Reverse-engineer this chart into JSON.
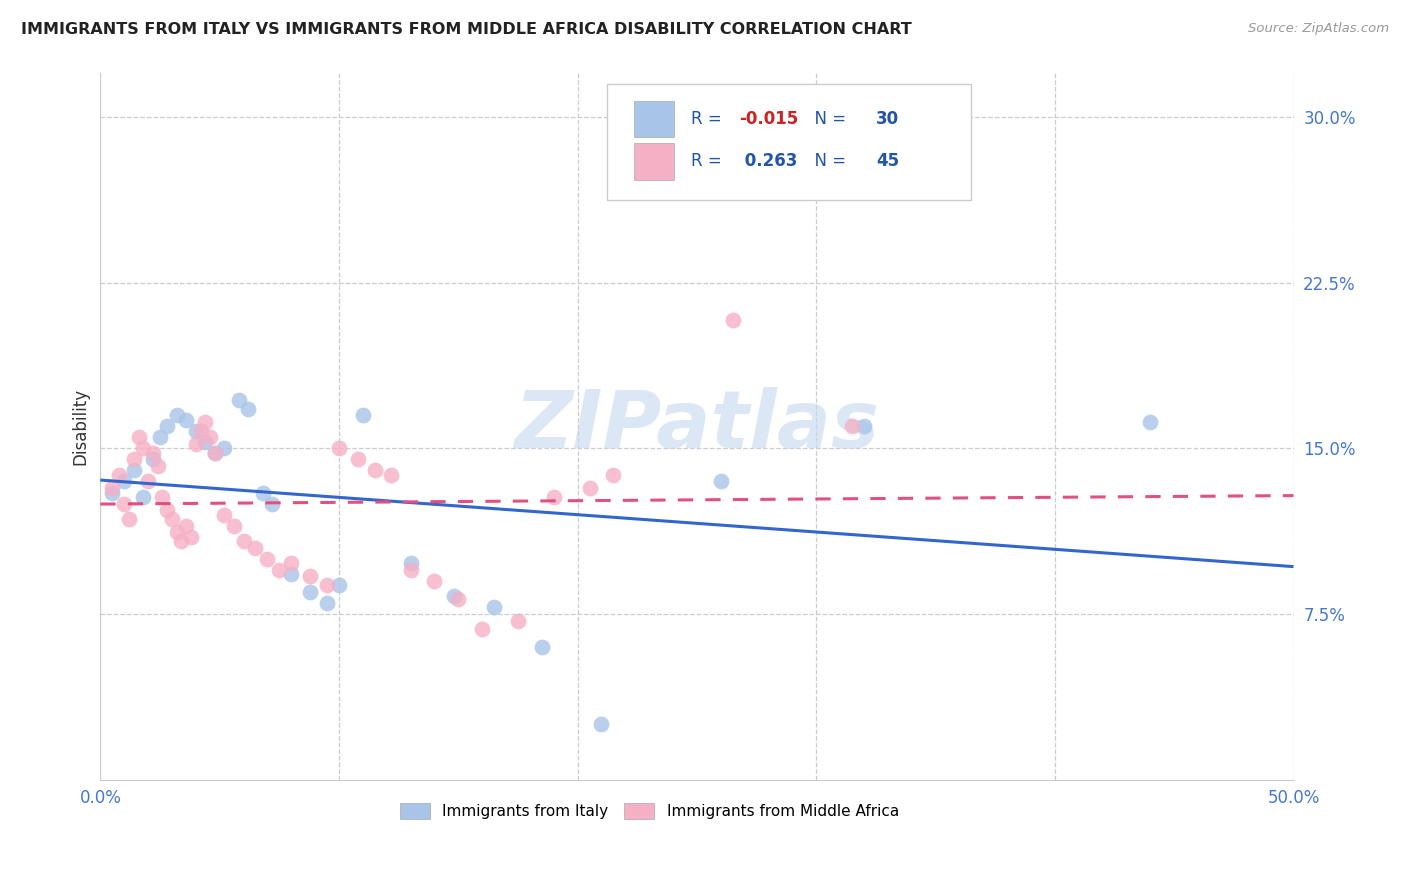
{
  "title": "IMMIGRANTS FROM ITALY VS IMMIGRANTS FROM MIDDLE AFRICA DISABILITY CORRELATION CHART",
  "source": "Source: ZipAtlas.com",
  "ylabel": "Disability",
  "xlim": [
    0.0,
    0.5
  ],
  "ylim": [
    0.0,
    0.32
  ],
  "ytick_vals": [
    0.075,
    0.15,
    0.225,
    0.3
  ],
  "ytick_labels": [
    "7.5%",
    "15.0%",
    "22.5%",
    "30.0%"
  ],
  "xtick_vals": [
    0.0,
    0.1,
    0.2,
    0.3,
    0.4,
    0.5
  ],
  "xtick_labels_show": [
    "0.0%",
    "",
    "",
    "",
    "",
    "50.0%"
  ],
  "italy_R": -0.015,
  "italy_N": 30,
  "africa_R": 0.263,
  "africa_N": 45,
  "italy_color": "#a8c4e8",
  "africa_color": "#f5b0c5",
  "italy_line_color": "#3366cc",
  "africa_line_color": "#e05080",
  "r_value_color": "#cc2222",
  "n_label_color": "#2255aa",
  "n_value_color": "#2255aa",
  "watermark": "ZIPatlas",
  "watermark_color": "#c5d8f0",
  "italy_x": [
    0.005,
    0.01,
    0.014,
    0.018,
    0.022,
    0.025,
    0.028,
    0.032,
    0.036,
    0.04,
    0.044,
    0.048,
    0.052,
    0.058,
    0.062,
    0.068,
    0.072,
    0.08,
    0.088,
    0.095,
    0.1,
    0.11,
    0.13,
    0.148,
    0.165,
    0.185,
    0.21,
    0.26,
    0.32,
    0.44
  ],
  "italy_y": [
    0.13,
    0.135,
    0.14,
    0.128,
    0.145,
    0.155,
    0.16,
    0.165,
    0.163,
    0.158,
    0.153,
    0.148,
    0.15,
    0.172,
    0.168,
    0.13,
    0.125,
    0.093,
    0.085,
    0.08,
    0.088,
    0.165,
    0.098,
    0.083,
    0.078,
    0.06,
    0.025,
    0.135,
    0.16,
    0.162
  ],
  "africa_x": [
    0.005,
    0.008,
    0.01,
    0.012,
    0.014,
    0.016,
    0.018,
    0.02,
    0.022,
    0.024,
    0.026,
    0.028,
    0.03,
    0.032,
    0.034,
    0.036,
    0.038,
    0.04,
    0.042,
    0.044,
    0.046,
    0.048,
    0.052,
    0.056,
    0.06,
    0.065,
    0.07,
    0.075,
    0.08,
    0.088,
    0.095,
    0.1,
    0.108,
    0.115,
    0.122,
    0.13,
    0.14,
    0.15,
    0.16,
    0.175,
    0.19,
    0.205,
    0.215,
    0.265,
    0.315
  ],
  "africa_y": [
    0.132,
    0.138,
    0.125,
    0.118,
    0.145,
    0.155,
    0.15,
    0.135,
    0.148,
    0.142,
    0.128,
    0.122,
    0.118,
    0.112,
    0.108,
    0.115,
    0.11,
    0.152,
    0.158,
    0.162,
    0.155,
    0.148,
    0.12,
    0.115,
    0.108,
    0.105,
    0.1,
    0.095,
    0.098,
    0.092,
    0.088,
    0.15,
    0.145,
    0.14,
    0.138,
    0.095,
    0.09,
    0.082,
    0.068,
    0.072,
    0.128,
    0.132,
    0.138,
    0.208,
    0.16
  ]
}
